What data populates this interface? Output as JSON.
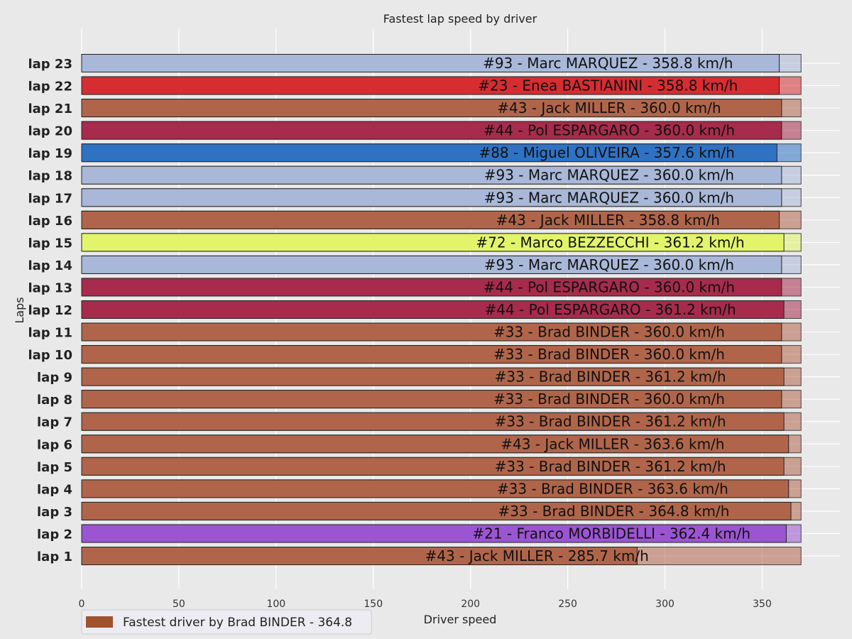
{
  "chart_data": {
    "type": "bar",
    "orientation": "horizontal",
    "title": "Fastest lap speed by driver",
    "xlabel": "Driver speed",
    "ylabel": "Laps",
    "xlim": [
      0,
      390
    ],
    "x_ticks": [
      0,
      50,
      100,
      150,
      200,
      250,
      300,
      350
    ],
    "background_bar_value": 370,
    "grid": true,
    "legend": {
      "placement": "bottom-left",
      "label": "Fastest driver by Brad BINDER - 364.8",
      "color": "#a0522d"
    },
    "categories": [
      "lap 1",
      "lap 2",
      "lap 3",
      "lap 4",
      "lap 5",
      "lap 6",
      "lap 7",
      "lap 8",
      "lap 9",
      "lap 10",
      "lap 11",
      "lap 12",
      "lap 13",
      "lap 14",
      "lap 15",
      "lap 16",
      "lap 17",
      "lap 18",
      "lap 19",
      "lap 20",
      "lap 21",
      "lap 22",
      "lap 23"
    ],
    "values": [
      285.7,
      362.4,
      364.8,
      363.6,
      361.2,
      363.6,
      361.2,
      360.0,
      361.2,
      360.0,
      360.0,
      361.2,
      360.0,
      360.0,
      361.2,
      358.8,
      360.0,
      360.0,
      357.6,
      360.0,
      360.0,
      358.8,
      358.8
    ],
    "labels": [
      "#43 - Jack MILLER - 285.7 km/h",
      "#21 - Franco MORBIDELLI - 362.4 km/h",
      "#33 - Brad BINDER - 364.8 km/h",
      "#33 - Brad BINDER - 363.6 km/h",
      "#33 - Brad BINDER - 361.2 km/h",
      "#43 - Jack MILLER - 363.6 km/h",
      "#33 - Brad BINDER - 361.2 km/h",
      "#33 - Brad BINDER - 360.0 km/h",
      "#33 - Brad BINDER - 361.2 km/h",
      "#33 - Brad BINDER - 360.0 km/h",
      "#33 - Brad BINDER - 360.0 km/h",
      "#44 - Pol ESPARGARO - 361.2 km/h",
      "#44 - Pol ESPARGARO - 360.0 km/h",
      "#93 - Marc MARQUEZ - 360.0 km/h",
      "#72 - Marco BEZZECCHI - 361.2 km/h",
      "#43 - Jack MILLER - 358.8 km/h",
      "#93 - Marc MARQUEZ - 360.0 km/h",
      "#93 - Marc MARQUEZ - 360.0 km/h",
      "#88 - Miguel OLIVEIRA - 357.6 km/h",
      "#44 - Pol ESPARGARO - 360.0 km/h",
      "#43 - Jack MILLER - 360.0 km/h",
      "#23 - Enea BASTIANINI - 358.8 km/h",
      "#93 - Marc MARQUEZ - 358.8 km/h"
    ],
    "colors": [
      "#b0654a",
      "#9b55d2",
      "#b0654a",
      "#b0654a",
      "#b0654a",
      "#b0654a",
      "#b0654a",
      "#b0654a",
      "#b0654a",
      "#b0654a",
      "#b0654a",
      "#a62b4c",
      "#a62b4c",
      "#a9b8d8",
      "#e2f56a",
      "#b0654a",
      "#a9b8d8",
      "#a9b8d8",
      "#2f72c4",
      "#a62b4c",
      "#b0654a",
      "#d62d32",
      "#a9b8d8"
    ]
  }
}
